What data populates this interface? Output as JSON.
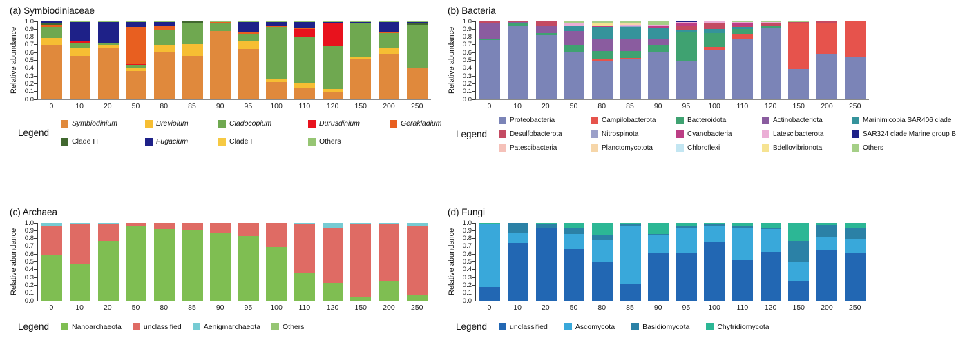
{
  "figure": {
    "background": "#ffffff"
  },
  "chart_data": [
    {
      "type": "bar",
      "stacked": true,
      "title": "(a) Symbiodiniaceae",
      "ylabel": "Relative abundance",
      "legend_label": "Legend",
      "ylim": [
        0.0,
        1.0
      ],
      "ytick_step": 0.1,
      "grid": false,
      "legend_position": "bottom",
      "categories": [
        "0",
        "10",
        "20",
        "50",
        "80",
        "85",
        "90",
        "95",
        "100",
        "110",
        "120",
        "150",
        "200",
        "250"
      ],
      "series": [
        {
          "name": "Symbiodinium",
          "italic": true,
          "color": "#E0893C",
          "values": [
            0.7,
            0.56,
            0.66,
            0.36,
            0.61,
            0.56,
            0.88,
            0.65,
            0.22,
            0.14,
            0.09,
            0.52,
            0.58,
            0.4
          ]
        },
        {
          "name": "Breviolum",
          "italic": true,
          "color": "#F6BE33",
          "values": [
            0.09,
            0.1,
            0.04,
            0.04,
            0.09,
            0.15,
            0.0,
            0.1,
            0.04,
            0.07,
            0.04,
            0.03,
            0.08,
            0.01
          ]
        },
        {
          "name": "Cladocopium",
          "italic": true,
          "color": "#6FA850",
          "values": [
            0.14,
            0.06,
            0.03,
            0.04,
            0.19,
            0.27,
            0.09,
            0.09,
            0.67,
            0.59,
            0.56,
            0.43,
            0.19,
            0.55
          ]
        },
        {
          "name": "Durusdinium",
          "italic": true,
          "color": "#E8121D",
          "values": [
            0.0,
            0.02,
            0.0,
            0.01,
            0.0,
            0.0,
            0.0,
            0.0,
            0.0,
            0.1,
            0.28,
            0.0,
            0.0,
            0.0
          ]
        },
        {
          "name": "Gerakladium",
          "italic": true,
          "color": "#E85F20",
          "values": [
            0.03,
            0.0,
            0.0,
            0.48,
            0.05,
            0.0,
            0.02,
            0.02,
            0.02,
            0.02,
            0.0,
            0.0,
            0.02,
            0.0
          ]
        },
        {
          "name": "Clade H",
          "italic": false,
          "color": "#41682F",
          "values": [
            0.01,
            0.0,
            0.0,
            0.0,
            0.0,
            0.02,
            0.0,
            0.0,
            0.0,
            0.0,
            0.0,
            0.0,
            0.0,
            0.01
          ]
        },
        {
          "name": "Fugacium",
          "italic": true,
          "color": "#1E2188",
          "values": [
            0.03,
            0.25,
            0.26,
            0.06,
            0.05,
            0.0,
            0.0,
            0.13,
            0.04,
            0.07,
            0.02,
            0.01,
            0.12,
            0.02
          ]
        },
        {
          "name": "Clade I",
          "italic": false,
          "color": "#F6C943",
          "values": [
            0.0,
            0.0,
            0.0,
            0.0,
            0.0,
            0.0,
            0.0,
            0.0,
            0.0,
            0.0,
            0.0,
            0.0,
            0.0,
            0.0
          ]
        },
        {
          "name": "Others",
          "italic": false,
          "color": "#96C573",
          "values": [
            0.0,
            0.01,
            0.01,
            0.01,
            0.01,
            0.0,
            0.01,
            0.01,
            0.01,
            0.01,
            0.01,
            0.01,
            0.01,
            0.01
          ]
        }
      ]
    },
    {
      "type": "bar",
      "stacked": true,
      "title": "(b) Bacteria",
      "ylabel": "Relative abundance",
      "legend_label": "Legend",
      "ylim": [
        0.0,
        1.0
      ],
      "ytick_step": 0.1,
      "grid": false,
      "legend_position": "bottom",
      "categories": [
        "0",
        "10",
        "20",
        "50",
        "80",
        "85",
        "90",
        "95",
        "100",
        "110",
        "120",
        "150",
        "200",
        "250"
      ],
      "series": [
        {
          "name": "Proteobacteria",
          "italic": false,
          "color": "#7B84B7",
          "values": [
            0.76,
            0.95,
            0.82,
            0.61,
            0.5,
            0.52,
            0.6,
            0.49,
            0.64,
            0.78,
            0.91,
            0.39,
            0.58,
            0.55
          ]
        },
        {
          "name": "Campilobacterota",
          "italic": false,
          "color": "#E6534C",
          "values": [
            0.0,
            0.0,
            0.0,
            0.0,
            0.01,
            0.01,
            0.0,
            0.01,
            0.03,
            0.06,
            0.0,
            0.58,
            0.4,
            0.45
          ]
        },
        {
          "name": "Bacteroidota",
          "italic": false,
          "color": "#3FA271",
          "values": [
            0.02,
            0.02,
            0.03,
            0.09,
            0.11,
            0.09,
            0.1,
            0.37,
            0.18,
            0.06,
            0.03,
            0.01,
            0.0,
            0.0
          ]
        },
        {
          "name": "Actinobacteriota",
          "italic": false,
          "color": "#8A5C9F",
          "values": [
            0.19,
            0.02,
            0.1,
            0.18,
            0.16,
            0.16,
            0.08,
            0.0,
            0.0,
            0.0,
            0.0,
            0.0,
            0.0,
            0.0
          ]
        },
        {
          "name": "Marinimicobia SAR406 clade",
          "italic": false,
          "color": "#35939B",
          "values": [
            0.0,
            0.0,
            0.0,
            0.07,
            0.15,
            0.15,
            0.14,
            0.02,
            0.05,
            0.03,
            0.01,
            0.0,
            0.0,
            0.0
          ]
        },
        {
          "name": "Desulfobacterota",
          "italic": false,
          "color": "#C44A62",
          "values": [
            0.03,
            0.01,
            0.05,
            0.0,
            0.0,
            0.0,
            0.0,
            0.06,
            0.08,
            0.02,
            0.03,
            0.01,
            0.02,
            0.0
          ]
        },
        {
          "name": "Nitrospinota",
          "italic": false,
          "color": "#9BA0C9",
          "values": [
            0.0,
            0.0,
            0.0,
            0.0,
            0.0,
            0.02,
            0.0,
            0.0,
            0.0,
            0.0,
            0.0,
            0.0,
            0.0,
            0.0
          ]
        },
        {
          "name": "Cyanobacteria",
          "italic": false,
          "color": "#BC3E85",
          "values": [
            0.0,
            0.0,
            0.0,
            0.0,
            0.02,
            0.0,
            0.02,
            0.03,
            0.0,
            0.02,
            0.0,
            0.0,
            0.0,
            0.0
          ]
        },
        {
          "name": "Latescibacterota",
          "italic": false,
          "color": "#EBAED6",
          "values": [
            0.0,
            0.0,
            0.0,
            0.02,
            0.0,
            0.01,
            0.02,
            0.01,
            0.02,
            0.02,
            0.01,
            0.0,
            0.0,
            0.0
          ]
        },
        {
          "name": "SAR324 clade Marine group B",
          "italic": false,
          "color": "#1E2188",
          "values": [
            0.0,
            0.0,
            0.0,
            0.0,
            0.0,
            0.0,
            0.0,
            0.01,
            0.0,
            0.0,
            0.0,
            0.0,
            0.0,
            0.0
          ]
        },
        {
          "name": "Patescibacteria",
          "italic": false,
          "color": "#F5C1B9",
          "values": [
            0.0,
            0.0,
            0.0,
            0.0,
            0.0,
            0.0,
            0.0,
            0.0,
            0.0,
            0.0,
            0.0,
            0.0,
            0.0,
            0.0
          ]
        },
        {
          "name": "Planctomycotota",
          "italic": false,
          "color": "#F6D6A9",
          "values": [
            0.0,
            0.0,
            0.0,
            0.0,
            0.0,
            0.02,
            0.0,
            0.0,
            0.0,
            0.0,
            0.0,
            0.0,
            0.0,
            0.0
          ]
        },
        {
          "name": "Chloroflexi",
          "italic": false,
          "color": "#C3E6F2",
          "values": [
            0.0,
            0.0,
            0.0,
            0.0,
            0.0,
            0.0,
            0.0,
            0.0,
            0.0,
            0.0,
            0.0,
            0.0,
            0.0,
            0.0
          ]
        },
        {
          "name": "Bdellovibrionota",
          "italic": false,
          "color": "#F6E392",
          "values": [
            0.0,
            0.0,
            0.0,
            0.0,
            0.03,
            0.0,
            0.0,
            0.0,
            0.0,
            0.0,
            0.0,
            0.0,
            0.0,
            0.0
          ]
        },
        {
          "name": "Others",
          "italic": false,
          "color": "#A5CF87",
          "values": [
            0.0,
            0.0,
            0.0,
            0.03,
            0.02,
            0.02,
            0.04,
            0.0,
            0.0,
            0.01,
            0.01,
            0.01,
            0.0,
            0.0
          ]
        }
      ]
    },
    {
      "type": "bar",
      "stacked": true,
      "title": "(c) Archaea",
      "ylabel": "Relative abundance",
      "legend_label": "Legend",
      "ylim": [
        0.0,
        1.0
      ],
      "ytick_step": 0.1,
      "grid": false,
      "legend_position": "bottom",
      "categories": [
        "0",
        "10",
        "20",
        "50",
        "80",
        "85",
        "90",
        "95",
        "100",
        "110",
        "120",
        "150",
        "200",
        "250"
      ],
      "series": [
        {
          "name": "Nanoarchaeota",
          "italic": false,
          "color": "#7FBE52",
          "values": [
            0.59,
            0.48,
            0.76,
            0.96,
            0.92,
            0.91,
            0.88,
            0.83,
            0.69,
            0.36,
            0.23,
            0.05,
            0.26,
            0.07
          ]
        },
        {
          "name": "unclassified",
          "italic": false,
          "color": "#DF6B64",
          "values": [
            0.37,
            0.5,
            0.22,
            0.04,
            0.08,
            0.09,
            0.12,
            0.17,
            0.31,
            0.62,
            0.71,
            0.94,
            0.73,
            0.89
          ]
        },
        {
          "name": "Aenigmarchaeota",
          "italic": false,
          "color": "#76CBD3",
          "values": [
            0.04,
            0.02,
            0.02,
            0.0,
            0.0,
            0.0,
            0.0,
            0.0,
            0.0,
            0.02,
            0.06,
            0.01,
            0.01,
            0.04
          ]
        },
        {
          "name": "Others",
          "italic": false,
          "color": "#96C573",
          "values": [
            0.0,
            0.0,
            0.0,
            0.0,
            0.0,
            0.0,
            0.0,
            0.0,
            0.0,
            0.0,
            0.0,
            0.0,
            0.0,
            0.0
          ]
        }
      ]
    },
    {
      "type": "bar",
      "stacked": true,
      "title": "(d) Fungi",
      "ylabel": "Relative abundance",
      "legend_label": "Legend",
      "ylim": [
        0.0,
        1.0
      ],
      "ytick_step": 0.1,
      "grid": false,
      "legend_position": "bottom",
      "categories": [
        "0",
        "10",
        "20",
        "50",
        "80",
        "85",
        "90",
        "95",
        "100",
        "110",
        "120",
        "150",
        "200",
        "250"
      ],
      "series": [
        {
          "name": "unclassified",
          "italic": false,
          "color": "#2267B3",
          "values": [
            0.18,
            0.74,
            0.94,
            0.66,
            0.5,
            0.21,
            0.61,
            0.61,
            0.75,
            0.52,
            0.63,
            0.26,
            0.65,
            0.62
          ]
        },
        {
          "name": "Ascomycota",
          "italic": false,
          "color": "#39A8DA",
          "values": [
            0.81,
            0.13,
            0.0,
            0.2,
            0.28,
            0.75,
            0.23,
            0.32,
            0.21,
            0.42,
            0.29,
            0.24,
            0.17,
            0.17
          ]
        },
        {
          "name": "Basidiomycota",
          "italic": false,
          "color": "#2B81A6",
          "values": [
            0.0,
            0.13,
            0.04,
            0.07,
            0.06,
            0.02,
            0.02,
            0.03,
            0.02,
            0.02,
            0.02,
            0.27,
            0.15,
            0.14
          ]
        },
        {
          "name": "Chytridiomycota",
          "italic": false,
          "color": "#2CB795",
          "values": [
            0.01,
            0.0,
            0.02,
            0.07,
            0.16,
            0.02,
            0.14,
            0.04,
            0.02,
            0.04,
            0.06,
            0.23,
            0.03,
            0.07
          ]
        }
      ]
    }
  ]
}
